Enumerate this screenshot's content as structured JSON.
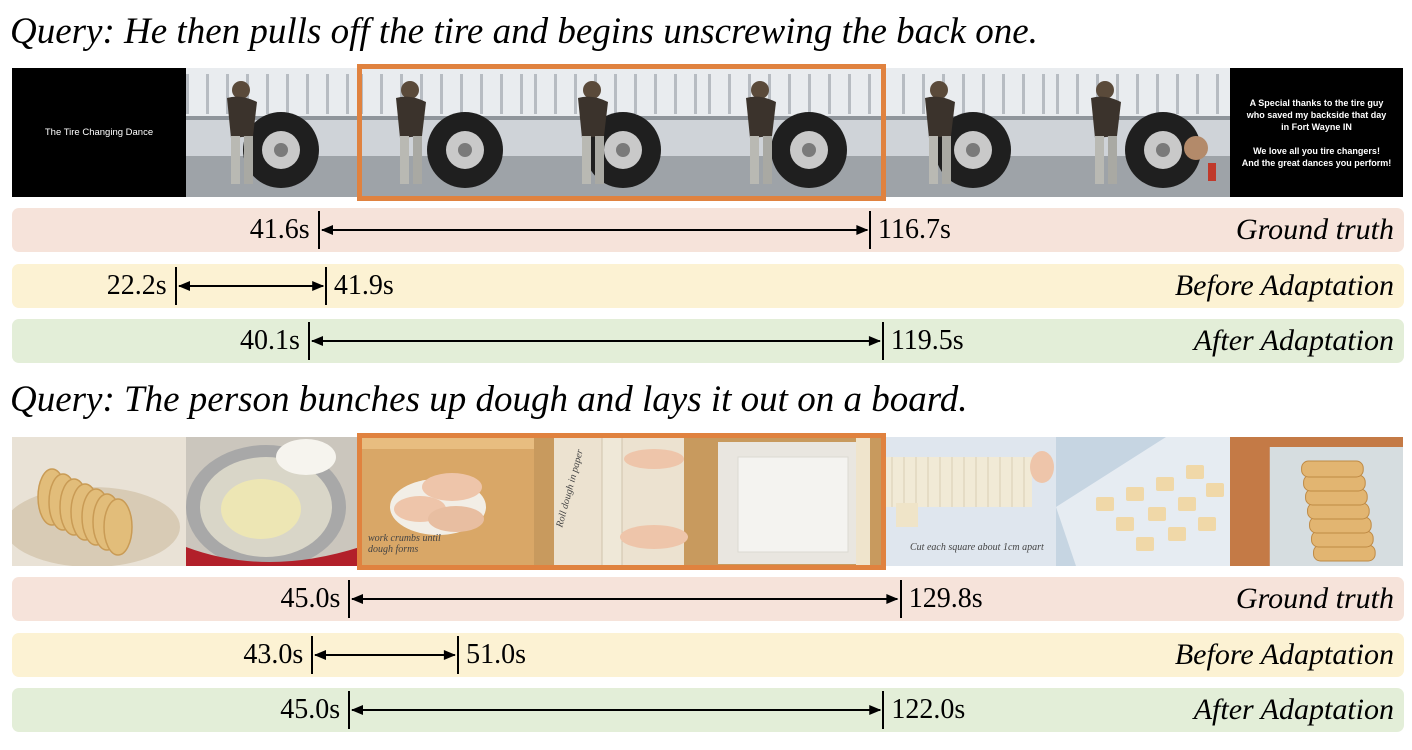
{
  "examples": [
    {
      "query": "Query: He then pulls off the tire and begins unscrewing the back one.",
      "frames": [
        {
          "kind": "title-card",
          "text": "The Tire Changing Dance"
        },
        {
          "kind": "tire-change",
          "variant": 1
        },
        {
          "kind": "tire-change",
          "variant": 2
        },
        {
          "kind": "tire-change",
          "variant": 3
        },
        {
          "kind": "tire-change",
          "variant": 4
        },
        {
          "kind": "tire-change",
          "variant": 5
        },
        {
          "kind": "tire-change",
          "variant": 6
        },
        {
          "kind": "credits-card",
          "text": "A Special thanks to the tire guy\nwho saved my backside that day\nin Fort Wayne IN\n\nWe love all you tire changers!\nAnd the great dances you perform!"
        }
      ],
      "highlight_frames": [
        2,
        4
      ],
      "rows": [
        {
          "label": "Ground truth",
          "color": "#f6e3da",
          "start": "41.6s",
          "end": "116.7s",
          "start_frac": 0.2203,
          "end_frac": 0.6164
        },
        {
          "label": "Before Adaptation",
          "color": "#fcf2d3",
          "start": "22.2s",
          "end": "41.9s",
          "start_frac": 0.1176,
          "end_frac": 0.2255
        },
        {
          "label": "After Adaptation",
          "color": "#e3eed8",
          "start": "40.1s",
          "end": "119.5s",
          "start_frac": 0.2133,
          "end_frac": 0.6256
        }
      ]
    },
    {
      "query": "Query: The person bunches up dough and lays it out on a board.",
      "frames": [
        {
          "kind": "cookies-plate"
        },
        {
          "kind": "mixing-bowl"
        },
        {
          "kind": "dough-hands",
          "caption": "work crumbs until\ndough forms"
        },
        {
          "kind": "rolling-pin",
          "caption": "Roll dough in paper"
        },
        {
          "kind": "rolled-dough"
        },
        {
          "kind": "cut-squares",
          "caption": "Cut each square about 1cm apart"
        },
        {
          "kind": "tray-squares"
        },
        {
          "kind": "cookie-stack"
        }
      ],
      "highlight_frames": [
        2,
        4
      ],
      "rows": [
        {
          "label": "Ground truth",
          "color": "#f6e3da",
          "start": "45.0s",
          "end": "129.8s",
          "start_frac": 0.2424,
          "end_frac": 0.6385
        },
        {
          "label": "Before Adaptation",
          "color": "#fcf2d3",
          "start": "43.0s",
          "end": "51.0s",
          "start_frac": 0.2157,
          "end_frac": 0.3205
        },
        {
          "label": "After Adaptation",
          "color": "#e3eed8",
          "start": "45.0s",
          "end": "122.0s",
          "start_frac": 0.2422,
          "end_frac": 0.626
        }
      ]
    }
  ]
}
